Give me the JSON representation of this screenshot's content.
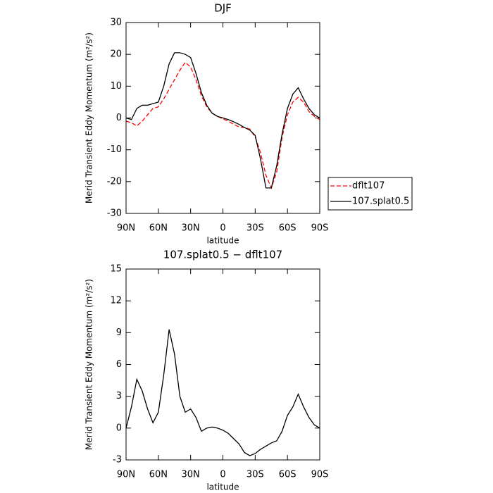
{
  "chart_data": [
    {
      "type": "line",
      "title": "DJF",
      "xlabel": "latitude",
      "ylabel": "Merid Transient Eddy Momentum (m²/s²)",
      "x": [
        90,
        85,
        80,
        75,
        70,
        65,
        60,
        55,
        50,
        45,
        40,
        35,
        30,
        25,
        20,
        15,
        10,
        5,
        0,
        -5,
        -10,
        -15,
        -20,
        -25,
        -30,
        -35,
        -40,
        -45,
        -50,
        -55,
        -60,
        -65,
        -70,
        -75,
        -80,
        -85,
        -90
      ],
      "series": [
        {
          "name": "dflt107",
          "color": "#ff0000",
          "dashed": true,
          "values": [
            -1,
            -1.5,
            -2.5,
            -1,
            1,
            3,
            3.5,
            6,
            9,
            12,
            15,
            17.5,
            16,
            12,
            7,
            3.5,
            1.5,
            0.5,
            -0.3,
            -1,
            -2,
            -2.8,
            -3,
            -3.5,
            -6,
            -11,
            -18,
            -22,
            -17,
            -6,
            1,
            5,
            6.5,
            5,
            2,
            0.5,
            -0.5
          ]
        },
        {
          "name": "107.splat0.5",
          "color": "#000000",
          "dashed": false,
          "values": [
            0,
            -0.5,
            3,
            4,
            4,
            4.5,
            5,
            10,
            17,
            20.5,
            20.5,
            20,
            19,
            14,
            8,
            4,
            1.5,
            0.5,
            0,
            -0.5,
            -1.2,
            -2,
            -3,
            -3.8,
            -5.5,
            -13,
            -22,
            -22,
            -15,
            -5,
            3,
            7.5,
            9.5,
            6,
            3,
            1,
            0
          ]
        }
      ],
      "xlim": [
        90,
        -90
      ],
      "ylim": [
        -30,
        30
      ],
      "xticks": [
        {
          "value": 90,
          "label": "90N"
        },
        {
          "value": 60,
          "label": "60N"
        },
        {
          "value": 30,
          "label": "30N"
        },
        0,
        {
          "value": -30,
          "label": "30S"
        },
        {
          "value": -60,
          "label": "60S"
        },
        {
          "value": -90,
          "label": "90S"
        }
      ],
      "yticks": [
        -30,
        -20,
        -10,
        0,
        10,
        20,
        30
      ],
      "legend": "outside-right"
    },
    {
      "type": "line",
      "title": "107.splat0.5 − dflt107",
      "xlabel": "latitude",
      "ylabel": "Merid Transient Eddy Momentum (m²/s²)",
      "x": [
        90,
        85,
        80,
        75,
        70,
        65,
        60,
        55,
        50,
        45,
        40,
        35,
        30,
        25,
        20,
        15,
        10,
        5,
        0,
        -5,
        -10,
        -15,
        -20,
        -25,
        -30,
        -35,
        -40,
        -45,
        -50,
        -55,
        -60,
        -65,
        -70,
        -75,
        -80,
        -85,
        -90
      ],
      "series": [
        {
          "color": "#000000",
          "dashed": false,
          "values": [
            0,
            2,
            4.6,
            3.5,
            1.8,
            0.5,
            1.5,
            5,
            9.3,
            7,
            3,
            1.5,
            1.8,
            1,
            -0.3,
            0,
            0.1,
            0,
            -0.2,
            -0.5,
            -1,
            -1.5,
            -2.3,
            -2.6,
            -2.4,
            -2,
            -1.7,
            -1.4,
            -1.2,
            -0.3,
            1.2,
            2,
            3.2,
            2,
            1,
            0.3,
            0
          ]
        }
      ],
      "xlim": [
        90,
        -90
      ],
      "ylim": [
        -3,
        15
      ],
      "xticks": [
        {
          "value": 90,
          "label": "90N"
        },
        {
          "value": 60,
          "label": "60N"
        },
        {
          "value": 30,
          "label": "30N"
        },
        0,
        {
          "value": -30,
          "label": "30S"
        },
        {
          "value": -60,
          "label": "60S"
        },
        {
          "value": -90,
          "label": "90S"
        }
      ],
      "yticks": [
        -3,
        0,
        3,
        6,
        9,
        12,
        15
      ]
    }
  ]
}
